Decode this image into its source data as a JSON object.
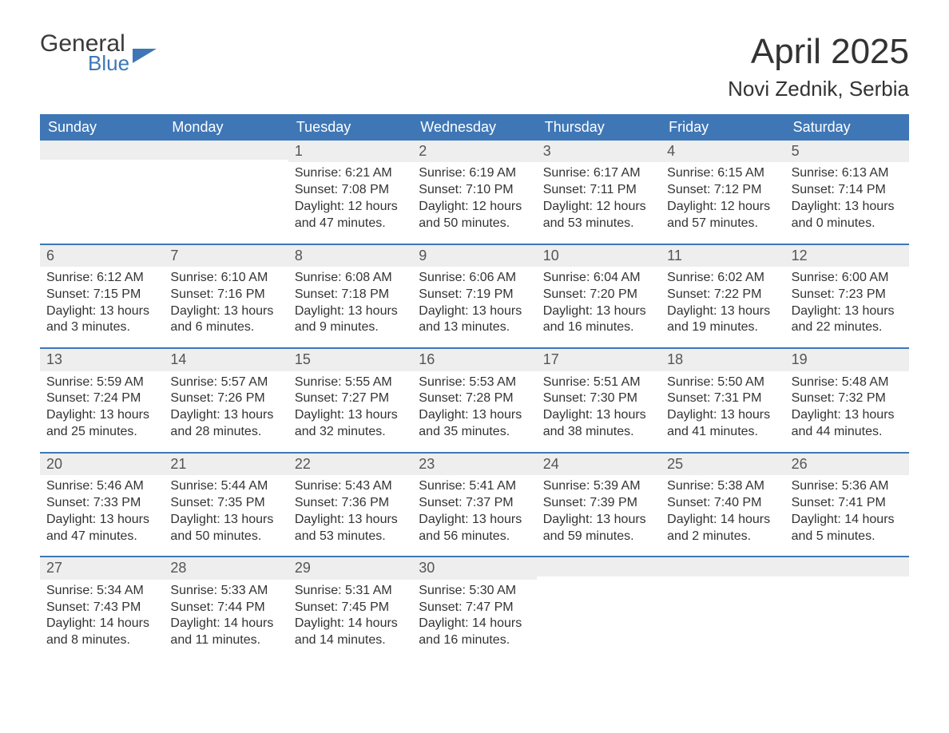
{
  "brand": {
    "line1": "General",
    "line2": "Blue"
  },
  "title": "April 2025",
  "location": "Novi Zednik, Serbia",
  "colors": {
    "header_bg": "#3f77b6",
    "header_text": "#ffffff",
    "daynum_bg": "#eeeeee",
    "body_text": "#333333",
    "page_bg": "#ffffff",
    "week_border": "#3f77b6"
  },
  "fonts": {
    "title_size_pt": 44,
    "location_size_pt": 26,
    "weekday_size_pt": 18,
    "body_size_pt": 16
  },
  "weekdays": [
    "Sunday",
    "Monday",
    "Tuesday",
    "Wednesday",
    "Thursday",
    "Friday",
    "Saturday"
  ],
  "weeks": [
    [
      null,
      null,
      {
        "n": "1",
        "sunrise": "6:21 AM",
        "sunset": "7:08 PM",
        "day_h": "12",
        "day_m": "47"
      },
      {
        "n": "2",
        "sunrise": "6:19 AM",
        "sunset": "7:10 PM",
        "day_h": "12",
        "day_m": "50"
      },
      {
        "n": "3",
        "sunrise": "6:17 AM",
        "sunset": "7:11 PM",
        "day_h": "12",
        "day_m": "53"
      },
      {
        "n": "4",
        "sunrise": "6:15 AM",
        "sunset": "7:12 PM",
        "day_h": "12",
        "day_m": "57"
      },
      {
        "n": "5",
        "sunrise": "6:13 AM",
        "sunset": "7:14 PM",
        "day_h": "13",
        "day_m": "0"
      }
    ],
    [
      {
        "n": "6",
        "sunrise": "6:12 AM",
        "sunset": "7:15 PM",
        "day_h": "13",
        "day_m": "3"
      },
      {
        "n": "7",
        "sunrise": "6:10 AM",
        "sunset": "7:16 PM",
        "day_h": "13",
        "day_m": "6"
      },
      {
        "n": "8",
        "sunrise": "6:08 AM",
        "sunset": "7:18 PM",
        "day_h": "13",
        "day_m": "9"
      },
      {
        "n": "9",
        "sunrise": "6:06 AM",
        "sunset": "7:19 PM",
        "day_h": "13",
        "day_m": "13"
      },
      {
        "n": "10",
        "sunrise": "6:04 AM",
        "sunset": "7:20 PM",
        "day_h": "13",
        "day_m": "16"
      },
      {
        "n": "11",
        "sunrise": "6:02 AM",
        "sunset": "7:22 PM",
        "day_h": "13",
        "day_m": "19"
      },
      {
        "n": "12",
        "sunrise": "6:00 AM",
        "sunset": "7:23 PM",
        "day_h": "13",
        "day_m": "22"
      }
    ],
    [
      {
        "n": "13",
        "sunrise": "5:59 AM",
        "sunset": "7:24 PM",
        "day_h": "13",
        "day_m": "25"
      },
      {
        "n": "14",
        "sunrise": "5:57 AM",
        "sunset": "7:26 PM",
        "day_h": "13",
        "day_m": "28"
      },
      {
        "n": "15",
        "sunrise": "5:55 AM",
        "sunset": "7:27 PM",
        "day_h": "13",
        "day_m": "32"
      },
      {
        "n": "16",
        "sunrise": "5:53 AM",
        "sunset": "7:28 PM",
        "day_h": "13",
        "day_m": "35"
      },
      {
        "n": "17",
        "sunrise": "5:51 AM",
        "sunset": "7:30 PM",
        "day_h": "13",
        "day_m": "38"
      },
      {
        "n": "18",
        "sunrise": "5:50 AM",
        "sunset": "7:31 PM",
        "day_h": "13",
        "day_m": "41"
      },
      {
        "n": "19",
        "sunrise": "5:48 AM",
        "sunset": "7:32 PM",
        "day_h": "13",
        "day_m": "44"
      }
    ],
    [
      {
        "n": "20",
        "sunrise": "5:46 AM",
        "sunset": "7:33 PM",
        "day_h": "13",
        "day_m": "47"
      },
      {
        "n": "21",
        "sunrise": "5:44 AM",
        "sunset": "7:35 PM",
        "day_h": "13",
        "day_m": "50"
      },
      {
        "n": "22",
        "sunrise": "5:43 AM",
        "sunset": "7:36 PM",
        "day_h": "13",
        "day_m": "53"
      },
      {
        "n": "23",
        "sunrise": "5:41 AM",
        "sunset": "7:37 PM",
        "day_h": "13",
        "day_m": "56"
      },
      {
        "n": "24",
        "sunrise": "5:39 AM",
        "sunset": "7:39 PM",
        "day_h": "13",
        "day_m": "59"
      },
      {
        "n": "25",
        "sunrise": "5:38 AM",
        "sunset": "7:40 PM",
        "day_h": "14",
        "day_m": "2"
      },
      {
        "n": "26",
        "sunrise": "5:36 AM",
        "sunset": "7:41 PM",
        "day_h": "14",
        "day_m": "5"
      }
    ],
    [
      {
        "n": "27",
        "sunrise": "5:34 AM",
        "sunset": "7:43 PM",
        "day_h": "14",
        "day_m": "8"
      },
      {
        "n": "28",
        "sunrise": "5:33 AM",
        "sunset": "7:44 PM",
        "day_h": "14",
        "day_m": "11"
      },
      {
        "n": "29",
        "sunrise": "5:31 AM",
        "sunset": "7:45 PM",
        "day_h": "14",
        "day_m": "14"
      },
      {
        "n": "30",
        "sunrise": "5:30 AM",
        "sunset": "7:47 PM",
        "day_h": "14",
        "day_m": "16"
      },
      null,
      null,
      null
    ]
  ],
  "labels": {
    "sunrise": "Sunrise:",
    "sunset": "Sunset:",
    "daylight": "Daylight:",
    "hours": "hours",
    "and": "and",
    "minutes": "minutes."
  }
}
